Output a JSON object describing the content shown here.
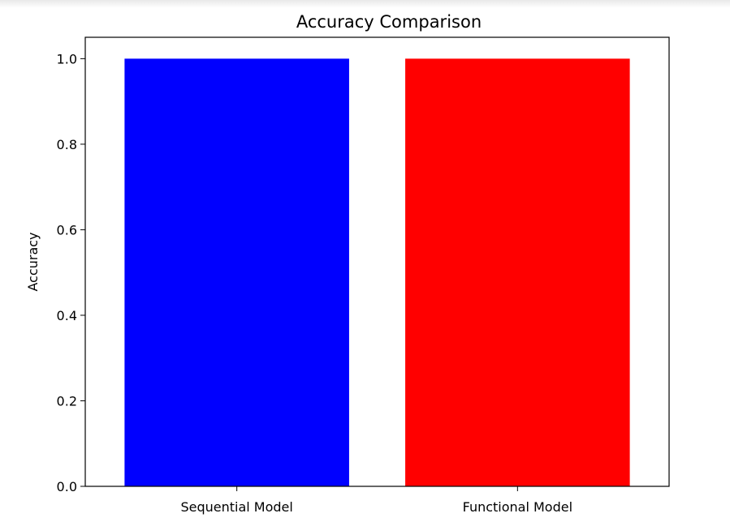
{
  "chart_data": {
    "type": "bar",
    "title": "Accuracy Comparison",
    "xlabel": "",
    "ylabel": "Accuracy",
    "categories": [
      "Sequential Model",
      "Functional Model"
    ],
    "values": [
      1.0,
      1.0
    ],
    "colors": [
      "#0000ff",
      "#ff0000"
    ],
    "ylim": [
      0,
      1.05
    ],
    "yticks": [
      "0.0",
      "0.2",
      "0.4",
      "0.6",
      "0.8",
      "1.0"
    ],
    "grid": false
  }
}
